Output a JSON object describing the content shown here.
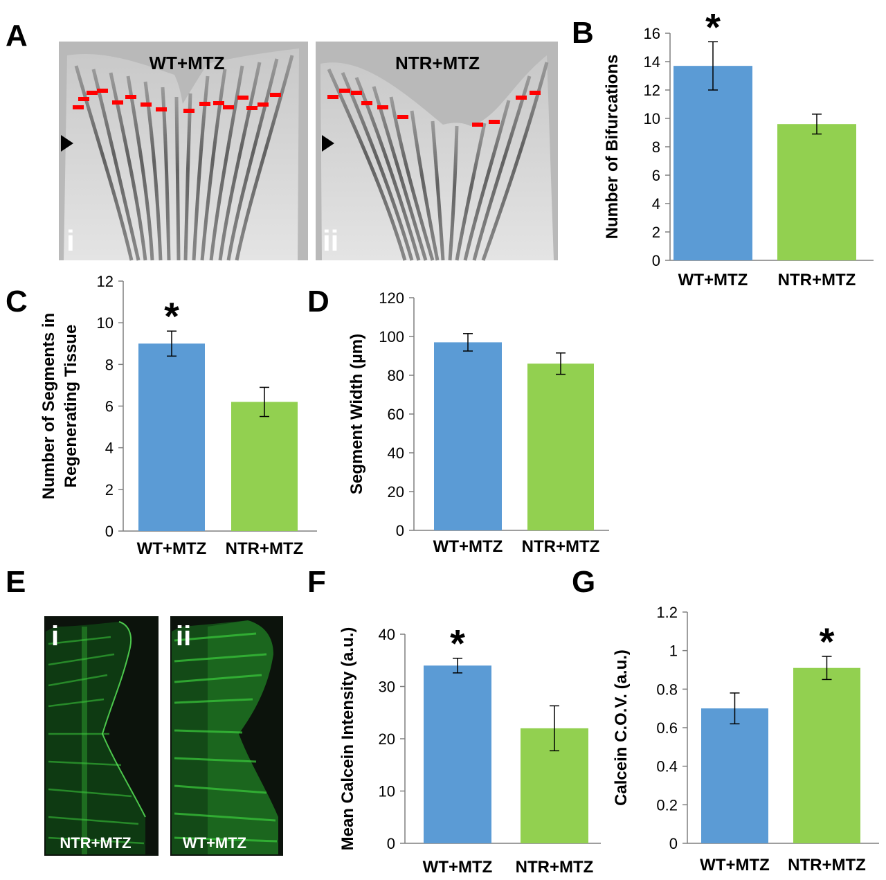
{
  "panels": {
    "A": {
      "letter": "A",
      "images": [
        {
          "label": "WT+MTZ",
          "roman": "i"
        },
        {
          "label": "NTR+MTZ",
          "roman": "ii"
        }
      ]
    },
    "E": {
      "letter": "E",
      "images": [
        {
          "label": "NTR+MTZ",
          "roman": "i"
        },
        {
          "label": "WT+MTZ",
          "roman": "ii"
        }
      ]
    }
  },
  "colors": {
    "wt": "#5b9bd5",
    "ntr": "#92d050",
    "marker": "#ff0000",
    "fluor": "#3ccc3c"
  },
  "chart_data": [
    {
      "id": "B",
      "letter": "B",
      "type": "bar",
      "categories": [
        "WT+MTZ",
        "NTR+MTZ"
      ],
      "values": [
        13.7,
        9.6
      ],
      "errors": [
        1.7,
        0.7
      ],
      "significance": [
        "*",
        ""
      ],
      "ylabel": [
        "Number of Bifurcations"
      ],
      "ylim": [
        0,
        16
      ],
      "ticks": [
        0,
        2,
        4,
        6,
        8,
        10,
        12,
        14,
        16
      ],
      "grid": false
    },
    {
      "id": "C",
      "letter": "C",
      "type": "bar",
      "categories": [
        "WT+MTZ",
        "NTR+MTZ"
      ],
      "values": [
        9.0,
        6.2
      ],
      "errors": [
        0.6,
        0.7
      ],
      "significance": [
        "*",
        ""
      ],
      "ylabel": [
        "Number of Segments in",
        "Regenerating Tissue"
      ],
      "ylim": [
        0,
        12
      ],
      "ticks": [
        0,
        2,
        4,
        6,
        8,
        10,
        12
      ],
      "grid": false
    },
    {
      "id": "D",
      "letter": "D",
      "type": "bar",
      "categories": [
        "WT+MTZ",
        "NTR+MTZ"
      ],
      "values": [
        97,
        86
      ],
      "errors": [
        4.5,
        5.5
      ],
      "significance": [
        "",
        ""
      ],
      "ylabel": [
        "Segment Width (µm)"
      ],
      "ylim": [
        0,
        120
      ],
      "ticks": [
        0,
        20,
        40,
        60,
        80,
        100,
        120
      ],
      "grid": false
    },
    {
      "id": "F",
      "letter": "F",
      "type": "bar",
      "categories": [
        "WT+MTZ",
        "NTR+MTZ"
      ],
      "values": [
        34,
        22
      ],
      "errors": [
        1.4,
        4.3
      ],
      "significance": [
        "*",
        ""
      ],
      "ylabel": [
        "Mean Calcein Intensity (a.u.)"
      ],
      "ylim": [
        0,
        40
      ],
      "ticks": [
        0,
        10,
        20,
        30,
        40
      ],
      "grid": false
    },
    {
      "id": "G",
      "letter": "G",
      "type": "bar",
      "categories": [
        "WT+MTZ",
        "NTR+MTZ"
      ],
      "values": [
        0.7,
        0.91
      ],
      "errors": [
        0.08,
        0.06
      ],
      "significance": [
        "",
        "*"
      ],
      "ylabel": [
        "Calcein C.O.V. (a.u.)"
      ],
      "ylim": [
        0,
        1.2
      ],
      "ticks": [
        0,
        0.2,
        0.4,
        0.6,
        0.8,
        1,
        1.2
      ],
      "grid": false
    }
  ]
}
